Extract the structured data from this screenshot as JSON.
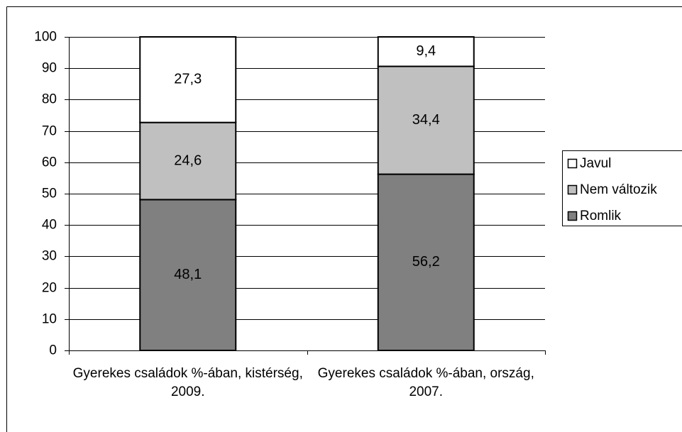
{
  "chart_data": {
    "type": "stacked_bar",
    "categories": [
      "Gyerekes családok %-ában, kistérség, 2009.",
      "Gyerekes családok %-ában, ország, 2007."
    ],
    "series": [
      {
        "name": "Romlik",
        "color": "#808080",
        "values": [
          48.1,
          56.2
        ],
        "value_labels": [
          "48,1",
          "56,2"
        ]
      },
      {
        "name": "Nem változik",
        "color": "#c0c0c0",
        "values": [
          24.6,
          34.4
        ],
        "value_labels": [
          "24,6",
          "34,4"
        ]
      },
      {
        "name": "Javul",
        "color": "#ffffff",
        "values": [
          27.3,
          9.4
        ],
        "value_labels": [
          "27,3",
          "9,4"
        ]
      }
    ],
    "ylim": [
      0,
      100
    ],
    "yticks": [
      0,
      10,
      20,
      30,
      40,
      50,
      60,
      70,
      80,
      90,
      100
    ],
    "grid": true,
    "legend": "right"
  }
}
